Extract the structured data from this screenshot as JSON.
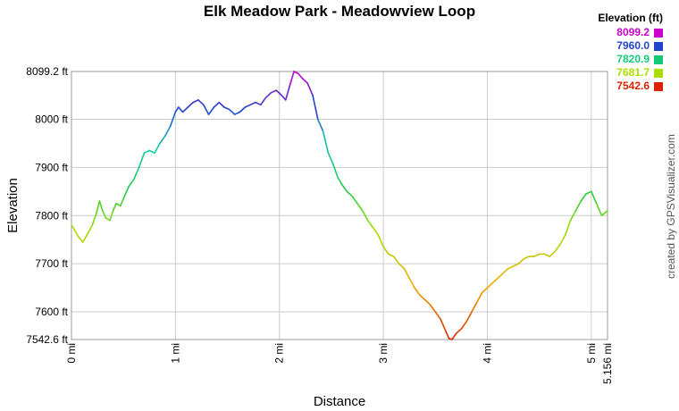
{
  "chart_data": {
    "type": "line",
    "title": "Elk Meadow Park - Meadowview Loop",
    "xlabel": "Distance",
    "ylabel": "Elevation",
    "xlim": [
      0,
      5.156
    ],
    "ylim": [
      7542.6,
      8099.2
    ],
    "x_ticks": [
      {
        "value": 0,
        "label": "0 mi"
      },
      {
        "value": 1,
        "label": "1 mi"
      },
      {
        "value": 2,
        "label": "2 mi"
      },
      {
        "value": 3,
        "label": "3 mi"
      },
      {
        "value": 4,
        "label": "4 mi"
      },
      {
        "value": 5,
        "label": "5 mi"
      },
      {
        "value": 5.156,
        "label": "5.156 mi"
      }
    ],
    "y_ticks": [
      {
        "value": 7542.6,
        "label": "7542.6 ft"
      },
      {
        "value": 7600,
        "label": "7600 ft"
      },
      {
        "value": 7700,
        "label": "7700 ft"
      },
      {
        "value": 7800,
        "label": "7800 ft"
      },
      {
        "value": 7900,
        "label": "7900 ft"
      },
      {
        "value": 8000,
        "label": "8000 ft"
      },
      {
        "value": 8099.2,
        "label": "8099.2 ft"
      }
    ],
    "grid": true,
    "legend": {
      "title": "Elevation (ft)",
      "placement": "top-right",
      "entries": [
        {
          "label": "8099.2",
          "color": "#cc00cc"
        },
        {
          "label": "7960.0",
          "color": "#2244cc"
        },
        {
          "label": "7820.9",
          "color": "#11cc77"
        },
        {
          "label": "7681.7",
          "color": "#aadd00"
        },
        {
          "label": "7542.6",
          "color": "#dd2200"
        }
      ]
    },
    "series": [
      {
        "x": [
          0,
          0.03,
          0.07,
          0.11,
          0.15,
          0.2,
          0.24,
          0.27,
          0.3,
          0.33,
          0.37,
          0.4,
          0.43,
          0.47,
          0.5,
          0.55,
          0.6,
          0.65,
          0.7,
          0.75,
          0.8,
          0.85,
          0.9,
          0.95,
          1.0,
          1.03,
          1.07,
          1.12,
          1.17,
          1.22,
          1.27,
          1.32,
          1.37,
          1.42,
          1.47,
          1.52,
          1.57,
          1.62,
          1.67,
          1.72,
          1.77,
          1.82,
          1.87,
          1.92,
          1.97,
          2.02,
          2.06,
          2.1,
          2.14,
          2.18,
          2.22,
          2.27,
          2.32,
          2.37,
          2.42,
          2.47,
          2.52,
          2.56,
          2.6,
          2.65,
          2.7,
          2.75,
          2.8,
          2.85,
          2.9,
          2.95,
          3.0,
          3.05,
          3.1,
          3.15,
          3.2,
          3.25,
          3.3,
          3.35,
          3.4,
          3.45,
          3.5,
          3.55,
          3.6,
          3.63,
          3.66,
          3.7,
          3.75,
          3.8,
          3.85,
          3.9,
          3.95,
          4.0,
          4.05,
          4.1,
          4.15,
          4.2,
          4.25,
          4.3,
          4.35,
          4.4,
          4.45,
          4.5,
          4.55,
          4.6,
          4.65,
          4.7,
          4.75,
          4.8,
          4.85,
          4.9,
          4.95,
          5.0,
          5.05,
          5.1,
          5.156
        ],
        "y": [
          7780,
          7770,
          7755,
          7745,
          7760,
          7780,
          7805,
          7830,
          7810,
          7795,
          7790,
          7810,
          7825,
          7820,
          7835,
          7860,
          7875,
          7900,
          7930,
          7935,
          7930,
          7950,
          7965,
          7985,
          8015,
          8025,
          8015,
          8025,
          8035,
          8040,
          8030,
          8010,
          8025,
          8035,
          8025,
          8020,
          8010,
          8015,
          8025,
          8030,
          8035,
          8030,
          8045,
          8055,
          8060,
          8050,
          8040,
          8070,
          8099.2,
          8095,
          8085,
          8075,
          8050,
          8000,
          7975,
          7930,
          7905,
          7880,
          7865,
          7850,
          7840,
          7825,
          7810,
          7790,
          7775,
          7760,
          7735,
          7720,
          7715,
          7700,
          7690,
          7670,
          7650,
          7635,
          7625,
          7615,
          7600,
          7585,
          7560,
          7545,
          7542.6,
          7555,
          7565,
          7580,
          7600,
          7620,
          7640,
          7650,
          7660,
          7670,
          7680,
          7690,
          7695,
          7700,
          7710,
          7715,
          7715,
          7720,
          7720,
          7715,
          7725,
          7740,
          7760,
          7790,
          7810,
          7830,
          7845,
          7850,
          7825,
          7800,
          7810
        ]
      }
    ]
  }
}
